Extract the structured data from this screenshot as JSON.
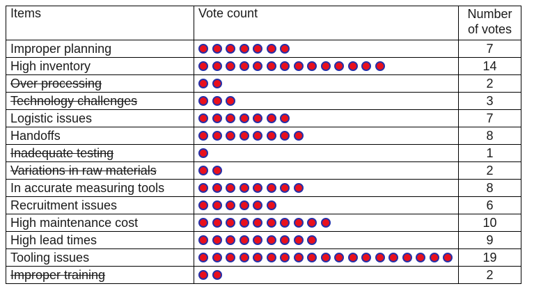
{
  "table": {
    "headers": {
      "items": "Items",
      "vote_count": "Vote count",
      "number_of_votes": "Number of votes"
    },
    "dot_colors": {
      "fill": "#e8101d",
      "outline": "#2530a8"
    },
    "rows": [
      {
        "item": "Improper planning",
        "votes": 7,
        "votes_label": "7",
        "struck": false
      },
      {
        "item": "High inventory",
        "votes": 14,
        "votes_label": "14",
        "struck": false
      },
      {
        "item": "Over processing",
        "votes": 2,
        "votes_label": "2",
        "struck": true
      },
      {
        "item": "Technology challenges",
        "votes": 3,
        "votes_label": "3",
        "struck": true
      },
      {
        "item": "Logistic issues",
        "votes": 7,
        "votes_label": "7",
        "struck": false
      },
      {
        "item": "Handoffs",
        "votes": 8,
        "votes_label": "8",
        "struck": false
      },
      {
        "item": "Inadequate testing",
        "votes": 1,
        "votes_label": "1",
        "struck": true
      },
      {
        "item": "Variations in raw materials",
        "votes": 2,
        "votes_label": "2",
        "struck": true
      },
      {
        "item": "In accurate measuring tools",
        "votes": 8,
        "votes_label": "8",
        "struck": false
      },
      {
        "item": "Recruitment issues",
        "votes": 6,
        "votes_label": "6",
        "struck": false
      },
      {
        "item": "High maintenance cost",
        "votes": 10,
        "votes_label": "10",
        "struck": false
      },
      {
        "item": "High lead times",
        "votes": 9,
        "votes_label": "9",
        "struck": false
      },
      {
        "item": "Tooling issues",
        "votes": 19,
        "votes_label": "19",
        "struck": false
      },
      {
        "item": "Improper training",
        "votes": 2,
        "votes_label": "2",
        "struck": true
      }
    ]
  }
}
